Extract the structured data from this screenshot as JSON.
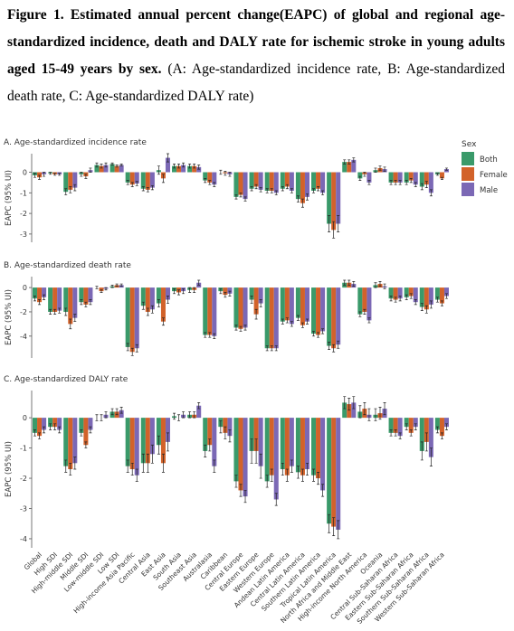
{
  "caption_bold": "Figure 1. Estimated annual percent change(EAPC) of global and regional age-standardized incidence, death and DALY rate for ischemic stroke in young adults aged 15-49 years by sex.",
  "caption_text": "(A: Age-standardized incidence rate, B: Age-standardized death rate, C: Age-standardized DALY rate)",
  "legend_title": "Sex",
  "chart_data": [
    {
      "type": "bar",
      "title": "A. Age-standardized incidence rate",
      "y_label": "EAPC (95% UI)",
      "ylim": [
        -3.4,
        0.9
      ],
      "yticks": [
        -3,
        -2,
        -1,
        0
      ],
      "series": [
        {
          "name": "Both",
          "color": "#3a9a6a",
          "values": [
            -0.15,
            -0.05,
            -0.95,
            -0.1,
            0.35,
            0.4,
            -0.5,
            -0.8,
            0.1,
            0.3,
            0.3,
            -0.4,
            0,
            -1.2,
            -0.8,
            -0.9,
            -0.8,
            -1.3,
            -0.9,
            -2.5,
            0.5,
            -0.3,
            0.1,
            -0.5,
            -0.5,
            -0.7,
            -0.1
          ],
          "errors": [
            0.1,
            0.05,
            0.15,
            0.1,
            0.1,
            0.05,
            0.1,
            0.1,
            0.2,
            0.1,
            0.1,
            0.1,
            0.1,
            0.1,
            0.1,
            0.1,
            0.1,
            0.15,
            0.1,
            0.4,
            0.1,
            0.1,
            0.1,
            0.1,
            0.1,
            0.15,
            0.05
          ]
        },
        {
          "name": "Female",
          "color": "#d2622a",
          "values": [
            -0.25,
            -0.1,
            -0.85,
            -0.2,
            0.3,
            0.3,
            -0.6,
            -0.85,
            -0.3,
            0.3,
            0.3,
            -0.5,
            -0.05,
            -1.1,
            -0.7,
            -0.9,
            -0.7,
            -1.5,
            -0.8,
            -2.8,
            0.5,
            -0.1,
            0.2,
            -0.5,
            -0.4,
            -0.6,
            -0.3
          ],
          "errors": [
            0.1,
            0.05,
            0.15,
            0.1,
            0.1,
            0.05,
            0.1,
            0.1,
            0.2,
            0.1,
            0.1,
            0.1,
            0.1,
            0.1,
            0.1,
            0.1,
            0.1,
            0.2,
            0.1,
            0.4,
            0.1,
            0.1,
            0.1,
            0.1,
            0.1,
            0.15,
            0.05
          ]
        },
        {
          "name": "Male",
          "color": "#7b68b5",
          "values": [
            -0.1,
            -0.1,
            -0.75,
            0.1,
            0.35,
            0.35,
            -0.55,
            -0.75,
            0.7,
            0.35,
            0.25,
            -0.6,
            -0.1,
            -1.3,
            -0.85,
            -1.0,
            -0.9,
            -1.2,
            -1.0,
            -2.5,
            0.6,
            -0.5,
            0.15,
            -0.5,
            -0.6,
            -1.0,
            0.15
          ],
          "errors": [
            0.1,
            0.05,
            0.15,
            0.1,
            0.1,
            0.05,
            0.1,
            0.1,
            0.2,
            0.1,
            0.1,
            0.1,
            0.1,
            0.1,
            0.1,
            0.1,
            0.1,
            0.15,
            0.1,
            0.4,
            0.1,
            0.1,
            0.1,
            0.1,
            0.1,
            0.15,
            0.05
          ]
        }
      ]
    },
    {
      "type": "bar",
      "title": "B. Age-standardized death rate",
      "y_label": "EAPC (95% UI)",
      "ylim": [
        -5.8,
        0.9
      ],
      "yticks": [
        -4,
        -2,
        0
      ],
      "series": [
        {
          "name": "Both",
          "color": "#3a9a6a",
          "values": [
            -0.9,
            -2.0,
            -2.0,
            -1.2,
            0,
            0.1,
            -4.9,
            -1.5,
            -1.3,
            -0.3,
            -0.2,
            -3.9,
            -0.3,
            -3.3,
            -1.0,
            -5.0,
            -2.8,
            -2.5,
            -3.8,
            -4.8,
            0.4,
            -2.2,
            0.2,
            -0.9,
            -0.8,
            -1.6,
            -1.0
          ],
          "errors": [
            0.2,
            0.2,
            0.3,
            0.2,
            0.1,
            0.1,
            0.3,
            0.3,
            0.3,
            0.2,
            0.2,
            0.2,
            0.2,
            0.2,
            0.3,
            0.2,
            0.2,
            0.2,
            0.2,
            0.3,
            0.2,
            0.2,
            0.2,
            0.2,
            0.2,
            0.3,
            0.2
          ]
        },
        {
          "name": "Female",
          "color": "#d2622a",
          "values": [
            -1.2,
            -2.0,
            -3.0,
            -1.4,
            -0.3,
            0.2,
            -5.3,
            -2.0,
            -2.8,
            -0.4,
            -0.2,
            -3.9,
            -0.6,
            -3.4,
            -2.2,
            -5.0,
            -2.7,
            -3.1,
            -3.9,
            -5.0,
            0.4,
            -2.0,
            0.3,
            -1.0,
            -0.7,
            -1.8,
            -1.3
          ],
          "errors": [
            0.2,
            0.2,
            0.4,
            0.2,
            0.1,
            0.1,
            0.3,
            0.3,
            0.3,
            0.2,
            0.2,
            0.2,
            0.2,
            0.2,
            0.4,
            0.2,
            0.2,
            0.2,
            0.2,
            0.3,
            0.2,
            0.2,
            0.2,
            0.2,
            0.2,
            0.3,
            0.2
          ]
        },
        {
          "name": "Male",
          "color": "#7b68b5",
          "values": [
            -0.8,
            -1.9,
            -2.5,
            -1.2,
            -0.1,
            0.2,
            -5.0,
            -1.8,
            -1.0,
            -0.3,
            0.4,
            -4.0,
            -0.5,
            -3.3,
            -1.3,
            -5.0,
            -3.0,
            -2.8,
            -3.6,
            -4.7,
            0.3,
            -2.7,
            0.1,
            -0.9,
            -1.2,
            -1.4,
            -0.7
          ],
          "errors": [
            0.2,
            0.2,
            0.3,
            0.2,
            0.1,
            0.1,
            0.3,
            0.3,
            0.3,
            0.2,
            0.2,
            0.2,
            0.2,
            0.2,
            0.3,
            0.2,
            0.2,
            0.2,
            0.2,
            0.3,
            0.2,
            0.2,
            0.2,
            0.2,
            0.2,
            0.3,
            0.2
          ]
        }
      ]
    },
    {
      "type": "bar",
      "title": "C. Age-standardized DALY rate",
      "y_label": "EAPC (95% UI)",
      "ylim": [
        -4.3,
        0.9
      ],
      "yticks": [
        -4,
        -3,
        -2,
        -1,
        0
      ],
      "categories": [
        "Global",
        "High SDI",
        "High-middle SDI",
        "Middle SDI",
        "Low-middle SDI",
        "Low SDI",
        "High-income Asia Pacific",
        "Central Asia",
        "East Asia",
        "South Asia",
        "Southeast Asia",
        "Australasia",
        "Caribbean",
        "Central Europe",
        "Eastern Europe",
        "Western Europe",
        "Andean Latin America",
        "Central Latin America",
        "Southern Latin America",
        "Tropical Latin America",
        "North Africa and Middle East",
        "High-income North America",
        "Oceania",
        "Central Sub-Saharan Africa",
        "Eastern Sub-Saharan Africa",
        "Southern Sub-Saharan Africa",
        "Western Sub-Saharan Africa"
      ],
      "series": [
        {
          "name": "Both",
          "color": "#3a9a6a",
          "values": [
            -0.5,
            -0.3,
            -1.6,
            -0.5,
            0,
            0.2,
            -1.6,
            -1.5,
            -0.9,
            0.05,
            0.1,
            -1.1,
            -0.3,
            -2.1,
            -1.1,
            -2.1,
            -1.7,
            -1.8,
            -1.9,
            -3.5,
            0.5,
            0.2,
            0.1,
            -0.5,
            -0.3,
            -1.1,
            -0.4
          ],
          "errors": [
            0.1,
            0.1,
            0.2,
            0.1,
            0.1,
            0.1,
            0.2,
            0.3,
            0.3,
            0.1,
            0.1,
            0.2,
            0.2,
            0.2,
            0.4,
            0.2,
            0.2,
            0.2,
            0.2,
            0.3,
            0.2,
            0.2,
            0.2,
            0.1,
            0.1,
            0.3,
            0.1
          ]
        },
        {
          "name": "Female",
          "color": "#d2622a",
          "values": [
            -0.6,
            -0.3,
            -1.7,
            -0.9,
            0,
            0.2,
            -1.7,
            -1.5,
            -1.5,
            0,
            0.1,
            -0.9,
            -0.5,
            -2.4,
            -1.1,
            -1.9,
            -1.9,
            -1.9,
            -2.0,
            -3.6,
            0.45,
            0.3,
            0.15,
            -0.5,
            -0.5,
            -0.8,
            -0.6
          ],
          "errors": [
            0.1,
            0.1,
            0.2,
            0.1,
            0.1,
            0.1,
            0.2,
            0.3,
            0.3,
            0.1,
            0.1,
            0.2,
            0.2,
            0.2,
            0.4,
            0.2,
            0.2,
            0.2,
            0.2,
            0.3,
            0.2,
            0.2,
            0.2,
            0.1,
            0.1,
            0.3,
            0.1
          ]
        },
        {
          "name": "Male",
          "color": "#7b68b5",
          "values": [
            -0.4,
            -0.4,
            -1.5,
            -0.4,
            0.1,
            0.25,
            -1.9,
            -1.2,
            -0.8,
            0.1,
            0.4,
            -1.6,
            -0.6,
            -2.6,
            -1.6,
            -2.7,
            -1.6,
            -1.7,
            -2.4,
            -3.7,
            0.5,
            0.1,
            0.3,
            -0.6,
            -0.3,
            -1.3,
            -0.3
          ],
          "errors": [
            0.1,
            0.1,
            0.2,
            0.1,
            0.1,
            0.1,
            0.2,
            0.3,
            0.3,
            0.1,
            0.1,
            0.2,
            0.2,
            0.2,
            0.4,
            0.2,
            0.2,
            0.2,
            0.2,
            0.3,
            0.2,
            0.2,
            0.2,
            0.1,
            0.1,
            0.3,
            0.1
          ]
        }
      ]
    }
  ]
}
